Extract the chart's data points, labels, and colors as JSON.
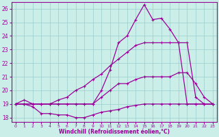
{
  "x": [
    0,
    1,
    2,
    3,
    4,
    5,
    6,
    7,
    8,
    9,
    10,
    11,
    12,
    13,
    14,
    15,
    16,
    17,
    18,
    19,
    20,
    21,
    22,
    23
  ],
  "line1_top": [
    19,
    19,
    19,
    19,
    19,
    19,
    19,
    19,
    19,
    19,
    20,
    21.5,
    23.5,
    24,
    25.2,
    26.3,
    25.2,
    25.3,
    24.5,
    23.5,
    19,
    19,
    19,
    19
  ],
  "line2_mid": [
    19,
    19,
    19,
    19,
    19,
    19.3,
    19.5,
    20,
    20.3,
    20.8,
    21.2,
    21.8,
    22.3,
    22.8,
    23.3,
    23.5,
    23.5,
    23.5,
    23.5,
    23.5,
    23.5,
    19.5,
    19,
    19
  ],
  "line3_flat": [
    19,
    19.3,
    19,
    19,
    19,
    19,
    19,
    19,
    19,
    19,
    19.5,
    20,
    20.5,
    20.5,
    20.8,
    21,
    21,
    21,
    21,
    21.3,
    21.3,
    20.5,
    19.5,
    19
  ],
  "line4_low": [
    19,
    19.0,
    18.8,
    18.3,
    18.3,
    18.2,
    18.2,
    18.0,
    18.0,
    18.2,
    18.4,
    18.5,
    18.6,
    18.8,
    18.9,
    19.0,
    19.0,
    19.0,
    19.0,
    19.0,
    19.0,
    19.0,
    19.0,
    19.0
  ],
  "bg_color": "#cceee8",
  "line_color": "#990099",
  "grid_color": "#99cccc",
  "xlabel": "Windchill (Refroidissement éolien,°C)",
  "xlim_min": -0.5,
  "xlim_max": 23.5,
  "ylim_min": 17.7,
  "ylim_max": 26.5,
  "yticks": [
    18,
    19,
    20,
    21,
    22,
    23,
    24,
    25,
    26
  ],
  "xticks": [
    0,
    1,
    2,
    3,
    4,
    5,
    6,
    7,
    8,
    9,
    10,
    11,
    12,
    13,
    14,
    15,
    16,
    17,
    18,
    19,
    20,
    21,
    22,
    23
  ]
}
